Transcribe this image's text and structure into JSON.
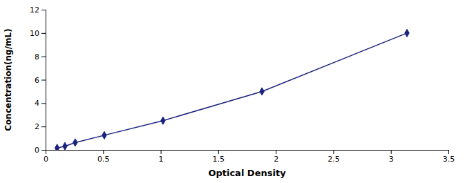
{
  "chart_data": {
    "type": "line",
    "x": [
      0.1,
      0.168,
      0.257,
      0.51,
      1.02,
      1.88,
      3.14
    ],
    "values": [
      0.156,
      0.312,
      0.625,
      1.25,
      2.5,
      5.0,
      10.0
    ],
    "color": "#1a237e",
    "marker": "diamond",
    "line_style": "solid",
    "xlabel": "Optical Density",
    "ylabel": "Concentration(ng/mL)",
    "xlim": [
      0,
      3.5
    ],
    "ylim": [
      0,
      12
    ],
    "xticks": [
      0,
      0.5,
      1,
      1.5,
      2,
      2.5,
      3,
      3.5
    ],
    "yticks": [
      0,
      2,
      4,
      6,
      8,
      10,
      12
    ],
    "grid": false
  }
}
